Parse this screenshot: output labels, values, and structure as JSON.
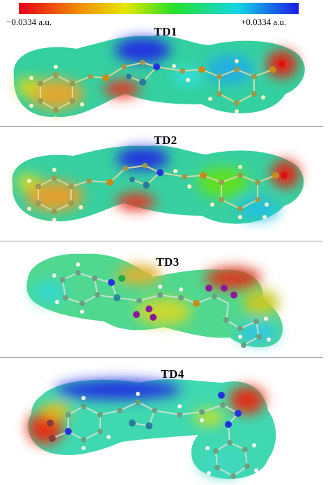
{
  "scale": {
    "min_label": "−0.0334 a.u.",
    "max_label": "+0.0334 a.u.",
    "gradient": [
      "#e8001c",
      "#f09000",
      "#e6e600",
      "#28e028",
      "#14d6e6",
      "#1a1ae6"
    ]
  },
  "panels": [
    {
      "title": "TD1"
    },
    {
      "title": "TD2"
    },
    {
      "title": "TD3"
    },
    {
      "title": "TD4"
    }
  ],
  "atom_colors": {
    "carbon": "#8b8b4a",
    "hydrogen": "#f4f4cc",
    "nitrogen": "#2233dd",
    "oxygen": "#dd1010",
    "sulfur": "#c88a1a",
    "iodine": "#8a1a9a"
  }
}
